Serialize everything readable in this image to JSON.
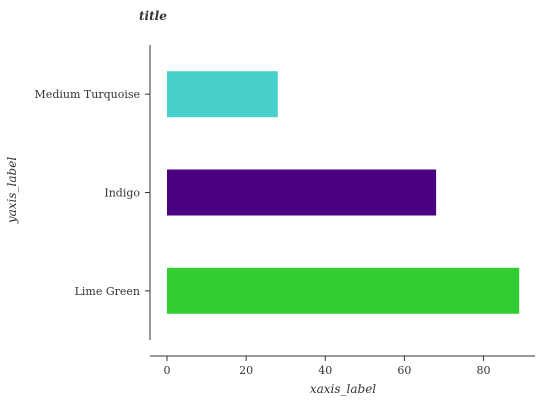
{
  "chart_data": {
    "type": "bar",
    "orientation": "horizontal",
    "title": "title",
    "xlabel": "xaxis_label",
    "ylabel": "yaxis_label",
    "categories": [
      "Lime Green",
      "Indigo",
      "Medium Turquoise"
    ],
    "values": [
      89,
      68,
      28
    ],
    "colors": [
      "#32cd32",
      "#4b0082",
      "#48d1cc"
    ],
    "xlim": [
      0,
      92
    ],
    "x_ticks": [
      0,
      20,
      40,
      60,
      80
    ],
    "grid": false,
    "legend": "none"
  }
}
